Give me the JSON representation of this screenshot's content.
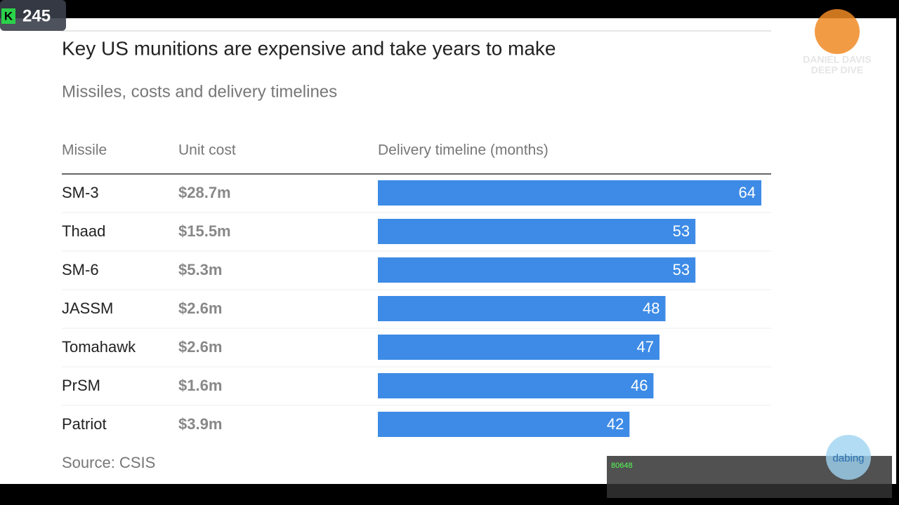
{
  "chart_data": {
    "type": "bar",
    "title": "Key US munitions are expensive and take years to make",
    "subtitle": "Missiles, costs and delivery timelines",
    "headers": [
      "Missile",
      "Unit cost",
      "Delivery timeline (months)"
    ],
    "categories": [
      "SM-3",
      "Thaad",
      "SM-6",
      "JASSM",
      "Tomahawk",
      "PrSM",
      "Patriot"
    ],
    "unit_costs": [
      "$28.7m",
      "$15.5m",
      "$5.3m",
      "$2.6m",
      "$2.6m",
      "$1.6m",
      "$3.9m"
    ],
    "values": [
      64,
      53,
      53,
      48,
      47,
      46,
      42
    ],
    "color": "#3d8be6",
    "source": "Source: CSIS"
  },
  "overlay": {
    "badge": "245",
    "logo_letter": "K",
    "watermark": [
      "DANIEL DAVIS",
      "DEEP DIVE"
    ],
    "viewer_count": "80648",
    "corner_text": "dabing"
  }
}
